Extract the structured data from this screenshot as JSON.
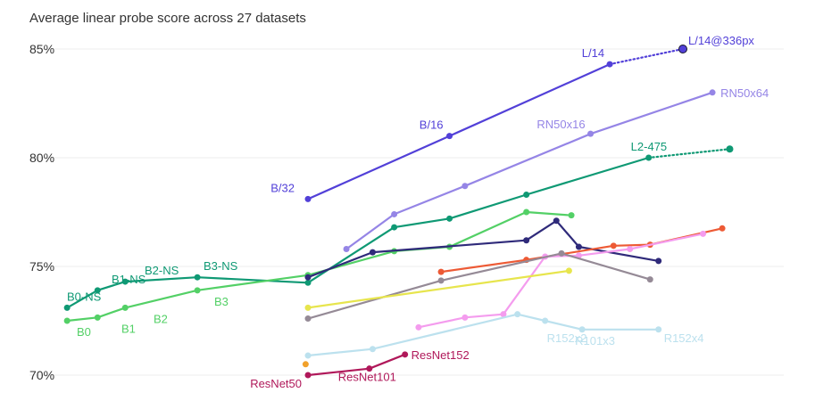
{
  "chart_data": {
    "type": "line",
    "title": "Average linear probe score across 27 datasets",
    "xlabel": "",
    "ylabel": "",
    "ylim": [
      69.6,
      87.5
    ],
    "yticks": [
      "70%",
      "75%",
      "80%",
      "85%"
    ],
    "ytick_values": [
      70,
      75,
      80,
      85
    ],
    "grid": true,
    "legend": "none",
    "note": "x axis is relative compute (log scale, no printed ticks); x values are approximate positions along that axis",
    "series": [
      {
        "id": "clip-vit",
        "color": "#5240d8",
        "points": [
          [
            0,
            78.1
          ],
          [
            3.02,
            81.0
          ],
          [
            6.44,
            84.3
          ]
        ],
        "labels": [
          {
            "i": 0,
            "text": "B/32"
          },
          {
            "i": 1,
            "text": "B/16"
          },
          {
            "i": 2,
            "text": "L/14"
          }
        ],
        "extension": {
          "points": [
            [
              6.44,
              84.3
            ],
            [
              8.0,
              85.0
            ]
          ],
          "label": "L/14@336px"
        }
      },
      {
        "id": "clip-resnet",
        "color": "#9585e6",
        "points": [
          [
            0.82,
            75.8
          ],
          [
            1.84,
            77.4
          ],
          [
            3.35,
            78.7
          ],
          [
            6.03,
            81.1
          ],
          [
            8.63,
            83.0
          ]
        ],
        "labels": [
          {
            "i": 3,
            "text": "RN50x16"
          },
          {
            "i": 4,
            "text": "RN50x64"
          }
        ]
      },
      {
        "id": "noisy-student",
        "color": "#0f9974",
        "points": [
          [
            -5.14,
            73.1
          ],
          [
            -4.49,
            73.9
          ],
          [
            -3.9,
            74.3
          ],
          [
            -2.36,
            74.5
          ],
          [
            0,
            74.25
          ],
          [
            1.84,
            76.8
          ],
          [
            3.02,
            77.2
          ],
          [
            4.66,
            78.3
          ],
          [
            7.27,
            80.0
          ]
        ],
        "labels": [
          {
            "i": 0,
            "text": "B0-NS"
          },
          {
            "i": 1,
            "text": "B1-NS"
          },
          {
            "i": 2,
            "text": "B2-NS"
          },
          {
            "i": 3,
            "text": "B3-NS"
          },
          {
            "i": 8,
            "text": "L2-475"
          }
        ],
        "extension": {
          "points": [
            [
              7.27,
              80.0
            ],
            [
              9.0,
              80.4
            ]
          ],
          "label": ""
        }
      },
      {
        "id": "efficientnet",
        "color": "#53d066",
        "points": [
          [
            -5.14,
            72.5
          ],
          [
            -4.49,
            72.65
          ],
          [
            -3.9,
            73.1
          ],
          [
            -2.36,
            73.9
          ],
          [
            0,
            74.6
          ],
          [
            1.84,
            75.7
          ],
          [
            3.02,
            75.9
          ],
          [
            4.66,
            77.5
          ],
          [
            5.62,
            77.35
          ]
        ],
        "labels": [
          {
            "i": 0,
            "text": "B0"
          },
          {
            "i": 1,
            "text": "B1"
          },
          {
            "i": 2,
            "text": "B2"
          },
          {
            "i": 3,
            "text": "B3"
          }
        ]
      },
      {
        "id": "indigo",
        "color": "#2f2a7a",
        "points": [
          [
            0,
            74.5
          ],
          [
            1.38,
            75.65
          ],
          [
            4.66,
            76.2
          ],
          [
            5.3,
            77.1
          ],
          [
            5.78,
            75.9
          ],
          [
            7.48,
            75.25
          ]
        ],
        "labels": []
      },
      {
        "id": "orange-red",
        "color": "#ed5a35",
        "points": [
          [
            2.84,
            74.75
          ],
          [
            4.66,
            75.3
          ],
          [
            6.52,
            75.95
          ],
          [
            7.3,
            76.0
          ],
          [
            8.84,
            76.75
          ]
        ],
        "labels": []
      },
      {
        "id": "pink",
        "color": "#f49cee",
        "points": [
          [
            2.36,
            72.2
          ],
          [
            3.35,
            72.65
          ],
          [
            4.17,
            72.8
          ],
          [
            5.06,
            75.45
          ],
          [
            5.78,
            75.5
          ],
          [
            6.87,
            75.8
          ],
          [
            8.43,
            76.5
          ]
        ],
        "labels": []
      },
      {
        "id": "gray",
        "color": "#958a96",
        "points": [
          [
            0,
            72.6
          ],
          [
            2.84,
            74.35
          ],
          [
            5.41,
            75.6
          ],
          [
            7.3,
            74.4
          ]
        ],
        "labels": []
      },
      {
        "id": "yellow",
        "color": "#e7e54d",
        "points": [
          [
            0,
            73.1
          ],
          [
            5.57,
            74.8
          ]
        ],
        "labels": []
      },
      {
        "id": "light-blue",
        "color": "#bce1ee",
        "points": [
          [
            0,
            70.9
          ],
          [
            1.38,
            71.2
          ],
          [
            4.47,
            72.8
          ],
          [
            5.06,
            72.5
          ],
          [
            5.85,
            72.1
          ],
          [
            7.48,
            72.1
          ]
        ],
        "labels": [
          {
            "i": 3,
            "text": "R152x2"
          },
          {
            "i": 4,
            "text": "R101x3"
          },
          {
            "i": 5,
            "text": "R152x4"
          }
        ]
      },
      {
        "id": "orange",
        "color": "#f1a12b",
        "points": [
          [
            -0.05,
            70.5
          ]
        ],
        "labels": []
      },
      {
        "id": "resnet",
        "color": "#b0185a",
        "points": [
          [
            0,
            70.0
          ],
          [
            1.31,
            70.3
          ],
          [
            2.07,
            70.95
          ]
        ],
        "labels": [
          {
            "i": 0,
            "text": "ResNet50"
          },
          {
            "i": 1,
            "text": "ResNet101"
          },
          {
            "i": 2,
            "text": "ResNet152"
          }
        ]
      }
    ]
  }
}
